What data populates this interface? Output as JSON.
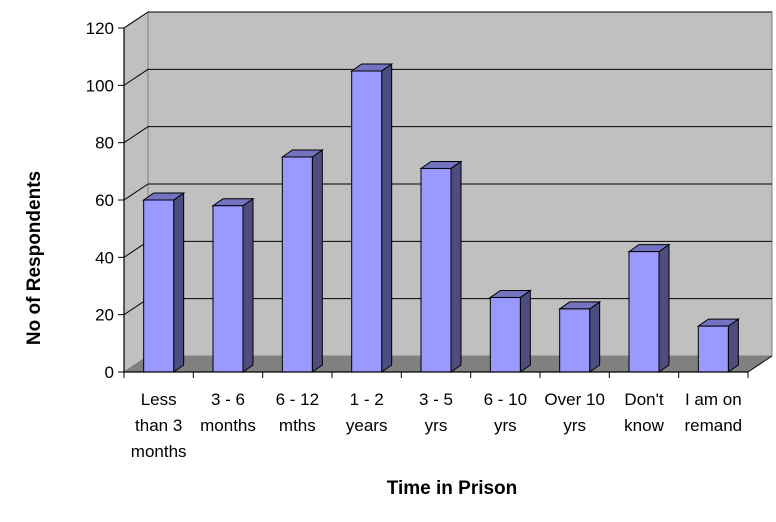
{
  "chart_data": {
    "type": "bar",
    "categories": [
      [
        "Less",
        "than 3",
        "months"
      ],
      [
        "3 - 6",
        "months"
      ],
      [
        "6 - 12",
        "mths"
      ],
      [
        "1 - 2",
        "years"
      ],
      [
        "3 - 5",
        "yrs"
      ],
      [
        "6 - 10",
        "yrs"
      ],
      [
        "Over 10",
        "yrs"
      ],
      [
        "Don't",
        "know"
      ],
      [
        "I am on",
        "remand"
      ]
    ],
    "values": [
      60,
      58,
      75,
      105,
      71,
      26,
      22,
      42,
      16
    ],
    "xlabel": "Time in Prison",
    "ylabel": "No of Respondents",
    "ylim": [
      0,
      120
    ],
    "yticks": [
      0,
      20,
      40,
      60,
      80,
      100,
      120
    ],
    "grid": true,
    "legend": "none",
    "colors": {
      "bar_front": "#9999ff",
      "bar_side": "#4d4d80",
      "bar_top": "#7373bf",
      "wall": "#c0c0c0",
      "floor": "#808080",
      "gridline": "#000000"
    }
  }
}
